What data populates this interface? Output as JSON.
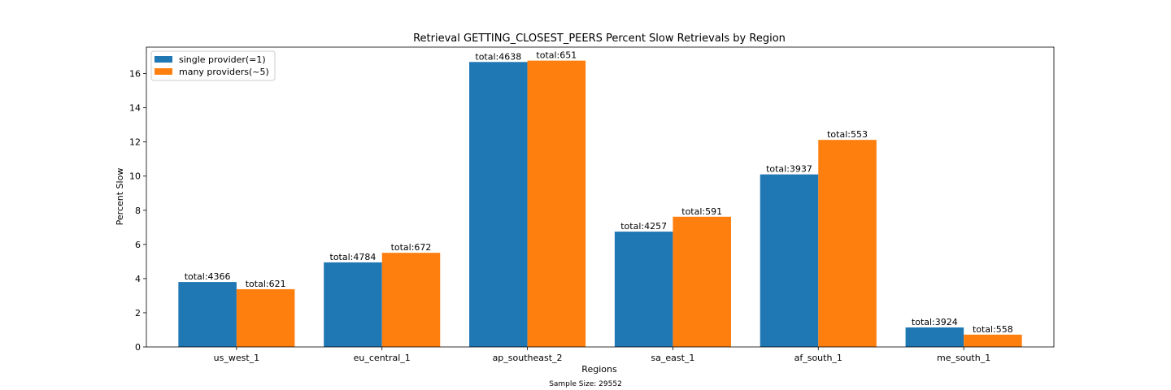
{
  "chart_data": {
    "type": "bar",
    "title": "Retrieval GETTING_CLOSEST_PEERS Percent Slow Retrievals by Region",
    "xlabel": "Regions",
    "ylabel": "Percent Slow",
    "footnote": "Sample Size: 29552",
    "categories": [
      "us_west_1",
      "eu_central_1",
      "ap_southeast_2",
      "sa_east_1",
      "af_south_1",
      "me_south_1"
    ],
    "ylim": [
      0,
      17.55
    ],
    "yticks": [
      0,
      2,
      4,
      6,
      8,
      10,
      12,
      14,
      16
    ],
    "grid": false,
    "legend_position": "top-left",
    "series": [
      {
        "name": "single provider(=1)",
        "color": "#1f77b4",
        "values": [
          3.8,
          4.95,
          16.68,
          6.75,
          10.1,
          1.14
        ],
        "labels": [
          "total:4366",
          "total:4784",
          "total:4638",
          "total:4257",
          "total:3937",
          "total:3924"
        ]
      },
      {
        "name": "many providers(~5)",
        "color": "#ff7f0e",
        "values": [
          3.38,
          5.51,
          16.76,
          7.62,
          12.12,
          0.72
        ],
        "labels": [
          "total:621",
          "total:672",
          "total:651",
          "total:591",
          "total:553",
          "total:558"
        ]
      }
    ]
  }
}
